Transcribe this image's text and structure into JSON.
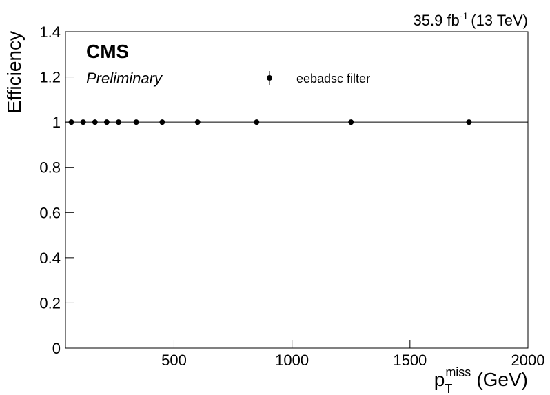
{
  "chart_data": {
    "type": "scatter",
    "experiment": "CMS",
    "status": "Preliminary",
    "lumi": {
      "main": "35.9 fb",
      "sup": "-1",
      "rest": "(13 TeV)"
    },
    "y_label": "Efficiency",
    "x_label": {
      "main": "p",
      "sub": "T",
      "sup": "miss",
      "rest": "(GeV)"
    },
    "x": [
      65,
      115,
      165,
      215,
      265,
      340,
      450,
      600,
      850,
      1250,
      1750
    ],
    "series": [
      {
        "name": "eebadsc filter",
        "color": "#000000",
        "values": [
          1,
          1,
          1,
          1,
          1,
          1,
          1,
          1,
          1,
          1,
          1
        ]
      }
    ],
    "reference_line": 1,
    "xlim": [
      40,
      2000
    ],
    "xticks": [
      500,
      1000,
      1500,
      2000
    ],
    "ylim": [
      0,
      1.4
    ],
    "yticks": [
      0,
      0.2,
      0.4,
      0.6,
      0.8,
      1,
      1.2,
      1.4
    ]
  }
}
